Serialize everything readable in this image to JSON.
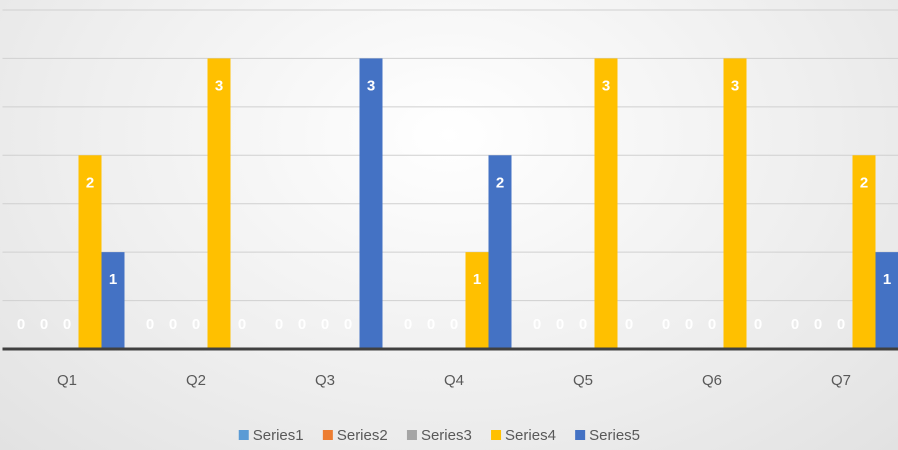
{
  "chart_data": {
    "type": "bar",
    "categories": [
      "Q1",
      "Q2",
      "Q3",
      "Q4",
      "Q5",
      "Q6",
      "Q7"
    ],
    "series": [
      {
        "name": "Series1",
        "color": "#5b9bd5",
        "values": [
          0,
          0,
          0,
          0,
          0,
          0,
          0
        ]
      },
      {
        "name": "Series2",
        "color": "#ed7d31",
        "values": [
          0,
          0,
          0,
          0,
          0,
          0,
          0
        ]
      },
      {
        "name": "Series3",
        "color": "#a5a5a5",
        "values": [
          0,
          0,
          0,
          0,
          0,
          0,
          0
        ]
      },
      {
        "name": "Series4",
        "color": "#ffc000",
        "values": [
          2,
          3,
          0,
          1,
          3,
          3,
          2
        ]
      },
      {
        "name": "Series5",
        "color": "#4472c4",
        "values": [
          1,
          0,
          3,
          2,
          0,
          0,
          1
        ]
      }
    ],
    "ylim": [
      0,
      3.5
    ],
    "yticks": [
      0,
      0.5,
      1,
      1.5,
      2,
      2.5,
      3,
      3.5
    ],
    "grid": true,
    "legend": "bottom"
  }
}
